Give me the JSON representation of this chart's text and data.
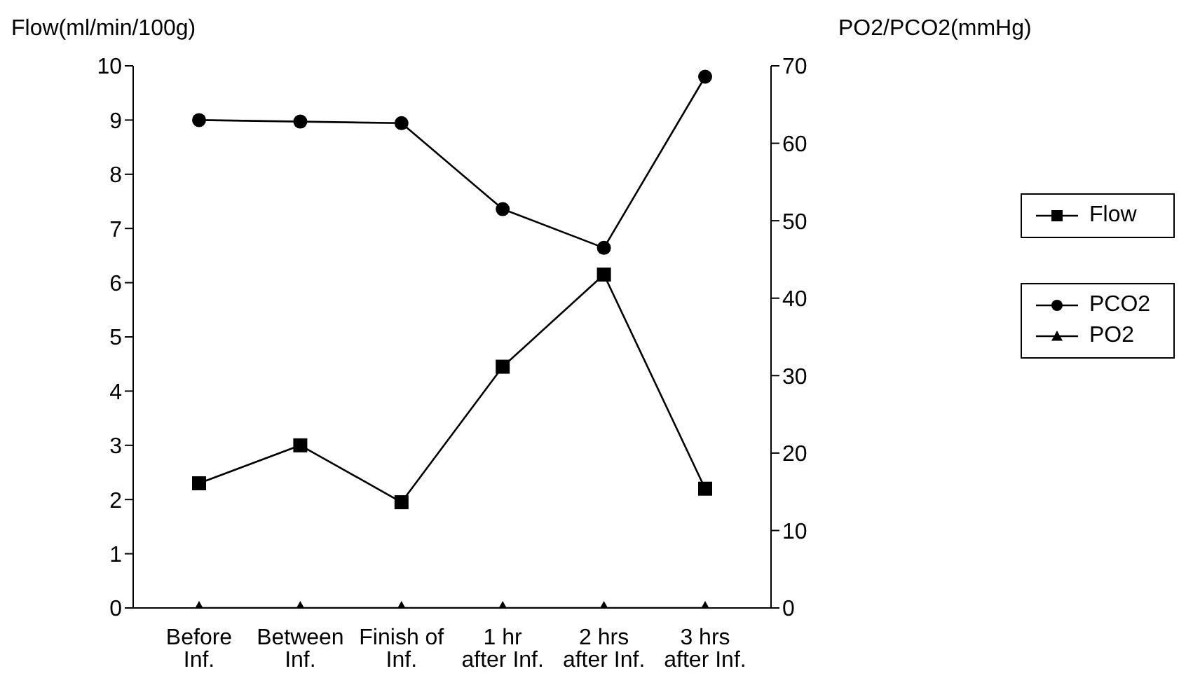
{
  "chart_data": {
    "type": "line",
    "ylabel": "Flow(ml/min/100g)",
    "y2label": "PO2/PCO2(mmHg)",
    "categories": [
      "Before\nInf.",
      "Between\nInf.",
      "Finish of\nInf.",
      "1 hr\nafter Inf.",
      "2 hrs\nafter Inf.",
      "3 hrs\nafter Inf."
    ],
    "series": [
      {
        "name": "Flow",
        "color": "#000000",
        "marker": "square",
        "values": [
          2.3,
          3.0,
          1.95,
          4.45,
          6.15,
          2.2
        ]
      },
      {
        "name": "PCO2",
        "color": "#000000",
        "marker": "circle",
        "axis": "y2",
        "values": [
          63,
          62.8,
          62.6,
          51.5,
          46.5,
          68.6
        ]
      },
      {
        "name": "PO2",
        "color": "#000000",
        "marker": "triangle",
        "axis": "y2",
        "values": [
          0,
          0,
          0,
          0,
          0,
          0
        ]
      }
    ],
    "ylim": [
      0,
      10
    ],
    "yticks": [
      0,
      1,
      2,
      3,
      4,
      5,
      6,
      7,
      8,
      9,
      10
    ],
    "y2lim": [
      0,
      70
    ],
    "y2ticks": [
      0,
      10,
      20,
      30,
      40,
      50,
      60,
      70
    ],
    "grid": false,
    "legend": "right",
    "line_style": "solid"
  }
}
